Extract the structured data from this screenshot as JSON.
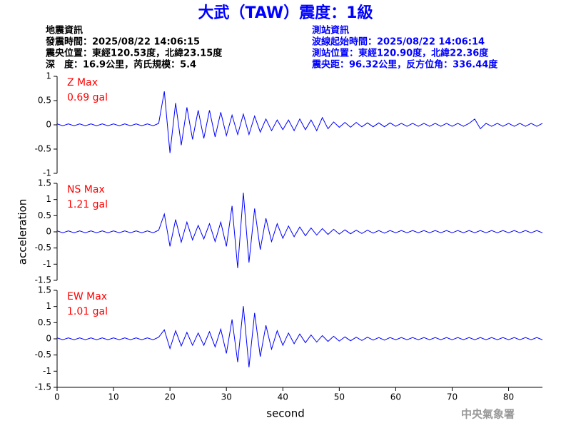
{
  "header": {
    "title": "大武（TAW）震度：1級",
    "left": [
      "地震資訊",
      "發震時間：2025/08/22 14:06:15",
      "震央位置：東經120.53度，北緯23.15度",
      "深　度：16.9公里，芮氏規模：5.4"
    ],
    "right": [
      "測站資訊",
      "波線起始時間：2025/08/22 14:06:14",
      "測站位置：東經120.90度，北緯22.36度",
      "震央距：96.32公里，反方位角：336.44度"
    ]
  },
  "footer": "中央氣象署",
  "chart_data": [
    {
      "type": "line",
      "annotations": [
        "Z Max",
        "0.69 gal"
      ],
      "annotation_color": "#ff0000",
      "xlim": [
        0,
        86
      ],
      "ylim": [
        -1,
        1
      ],
      "yticks": [
        -1,
        -0.5,
        0,
        0.5,
        1
      ],
      "x": [
        0,
        1,
        2,
        3,
        4,
        5,
        6,
        7,
        8,
        9,
        10,
        11,
        12,
        13,
        14,
        15,
        16,
        17,
        18,
        19,
        20,
        21,
        22,
        23,
        24,
        25,
        26,
        27,
        28,
        29,
        30,
        31,
        32,
        33,
        34,
        35,
        36,
        37,
        38,
        39,
        40,
        41,
        42,
        43,
        44,
        45,
        46,
        47,
        48,
        49,
        50,
        51,
        52,
        53,
        54,
        55,
        56,
        57,
        58,
        59,
        60,
        61,
        62,
        63,
        64,
        65,
        66,
        67,
        68,
        69,
        70,
        71,
        72,
        73,
        74,
        75,
        76,
        77,
        78,
        79,
        80,
        81,
        82,
        83,
        84,
        85,
        86
      ],
      "series": [
        {
          "name": "Z",
          "color": "#0000ff",
          "values": [
            0.02,
            -0.02,
            0.02,
            -0.02,
            0.02,
            -0.02,
            0.02,
            -0.02,
            0.02,
            -0.02,
            0.02,
            -0.02,
            0.02,
            -0.02,
            0.02,
            -0.02,
            0.02,
            -0.02,
            0.03,
            0.69,
            -0.58,
            0.45,
            -0.42,
            0.36,
            -0.3,
            0.3,
            -0.28,
            0.3,
            -0.25,
            0.26,
            -0.22,
            0.2,
            -0.2,
            0.22,
            -0.2,
            0.18,
            -0.15,
            0.12,
            -0.12,
            0.1,
            -0.1,
            0.1,
            -0.12,
            0.12,
            -0.1,
            0.1,
            -0.12,
            0.15,
            -0.08,
            0.06,
            -0.05,
            0.05,
            -0.05,
            0.05,
            -0.04,
            0.04,
            -0.04,
            0.04,
            -0.04,
            0.04,
            -0.03,
            0.03,
            -0.03,
            0.03,
            -0.03,
            0.03,
            -0.03,
            0.03,
            -0.03,
            0.03,
            -0.03,
            0.03,
            -0.03,
            0.03,
            0.12,
            -0.08,
            0.03,
            -0.03,
            0.03,
            -0.03,
            0.03,
            -0.03,
            0.03,
            -0.03,
            0.03,
            -0.03,
            0.03
          ]
        }
      ]
    },
    {
      "type": "line",
      "annotations": [
        "NS Max",
        "1.21 gal"
      ],
      "annotation_color": "#ff0000",
      "ylabel": "acceleration",
      "xlim": [
        0,
        86
      ],
      "ylim": [
        -1.5,
        1.5
      ],
      "yticks": [
        -1.5,
        -1,
        -0.5,
        0,
        0.5,
        1,
        1.5
      ],
      "x": [
        0,
        1,
        2,
        3,
        4,
        5,
        6,
        7,
        8,
        9,
        10,
        11,
        12,
        13,
        14,
        15,
        16,
        17,
        18,
        19,
        20,
        21,
        22,
        23,
        24,
        25,
        26,
        27,
        28,
        29,
        30,
        31,
        32,
        33,
        34,
        35,
        36,
        37,
        38,
        39,
        40,
        41,
        42,
        43,
        44,
        45,
        46,
        47,
        48,
        49,
        50,
        51,
        52,
        53,
        54,
        55,
        56,
        57,
        58,
        59,
        60,
        61,
        62,
        63,
        64,
        65,
        66,
        67,
        68,
        69,
        70,
        71,
        72,
        73,
        74,
        75,
        76,
        77,
        78,
        79,
        80,
        81,
        82,
        83,
        84,
        85,
        86
      ],
      "series": [
        {
          "name": "NS",
          "color": "#0000ff",
          "values": [
            0.03,
            -0.03,
            0.03,
            -0.03,
            0.03,
            -0.03,
            0.03,
            -0.03,
            0.03,
            -0.03,
            0.03,
            -0.03,
            0.03,
            -0.03,
            0.03,
            -0.03,
            0.03,
            -0.03,
            0.05,
            0.55,
            -0.45,
            0.38,
            -0.32,
            0.3,
            -0.25,
            0.2,
            -0.22,
            0.25,
            -0.3,
            0.3,
            -0.45,
            0.8,
            -1.12,
            1.21,
            -0.95,
            0.72,
            -0.55,
            0.42,
            -0.3,
            0.25,
            -0.2,
            0.18,
            -0.15,
            0.15,
            -0.12,
            0.12,
            -0.1,
            0.1,
            -0.08,
            0.08,
            -0.07,
            0.06,
            -0.06,
            0.05,
            -0.05,
            0.05,
            -0.04,
            0.04,
            -0.04,
            0.04,
            -0.03,
            0.04,
            -0.03,
            0.04,
            -0.03,
            0.04,
            -0.03,
            0.04,
            -0.03,
            0.04,
            -0.03,
            0.04,
            -0.03,
            0.04,
            -0.03,
            0.04,
            -0.03,
            0.04,
            -0.03,
            0.04,
            -0.03,
            0.04,
            -0.03,
            0.04,
            -0.03,
            0.04,
            -0.03
          ]
        }
      ]
    },
    {
      "type": "line",
      "annotations": [
        "EW Max",
        "1.01 gal"
      ],
      "annotation_color": "#ff0000",
      "xlabel": "second",
      "xlim": [
        0,
        86
      ],
      "xticks": [
        0,
        10,
        20,
        30,
        40,
        50,
        60,
        70,
        80
      ],
      "ylim": [
        -1.5,
        1.5
      ],
      "yticks": [
        -1.5,
        -1,
        -0.5,
        0,
        0.5,
        1,
        1.5
      ],
      "x": [
        0,
        1,
        2,
        3,
        4,
        5,
        6,
        7,
        8,
        9,
        10,
        11,
        12,
        13,
        14,
        15,
        16,
        17,
        18,
        19,
        20,
        21,
        22,
        23,
        24,
        25,
        26,
        27,
        28,
        29,
        30,
        31,
        32,
        33,
        34,
        35,
        36,
        37,
        38,
        39,
        40,
        41,
        42,
        43,
        44,
        45,
        46,
        47,
        48,
        49,
        50,
        51,
        52,
        53,
        54,
        55,
        56,
        57,
        58,
        59,
        60,
        61,
        62,
        63,
        64,
        65,
        66,
        67,
        68,
        69,
        70,
        71,
        72,
        73,
        74,
        75,
        76,
        77,
        78,
        79,
        80,
        81,
        82,
        83,
        84,
        85,
        86
      ],
      "series": [
        {
          "name": "EW",
          "color": "#0000ff",
          "values": [
            0.03,
            -0.03,
            0.03,
            -0.03,
            0.03,
            -0.03,
            0.03,
            -0.03,
            0.03,
            -0.03,
            0.03,
            -0.03,
            0.03,
            -0.03,
            0.03,
            -0.03,
            0.03,
            -0.03,
            0.05,
            0.28,
            -0.3,
            0.25,
            -0.22,
            0.2,
            -0.2,
            0.18,
            -0.2,
            0.22,
            -0.25,
            0.3,
            -0.45,
            0.6,
            -0.72,
            1.01,
            -0.88,
            0.8,
            -0.55,
            0.42,
            -0.32,
            0.25,
            -0.2,
            0.18,
            -0.15,
            0.15,
            -0.12,
            0.12,
            -0.1,
            0.1,
            -0.08,
            0.08,
            -0.07,
            0.06,
            -0.06,
            0.05,
            -0.05,
            0.05,
            -0.04,
            0.04,
            -0.04,
            0.04,
            -0.03,
            0.04,
            -0.03,
            0.04,
            -0.03,
            0.04,
            -0.03,
            0.04,
            -0.03,
            0.04,
            -0.03,
            0.04,
            -0.03,
            0.04,
            -0.03,
            0.04,
            -0.03,
            0.04,
            -0.03,
            0.04,
            -0.03,
            0.04,
            -0.03,
            0.04,
            -0.03,
            0.04,
            -0.03
          ]
        }
      ]
    }
  ]
}
